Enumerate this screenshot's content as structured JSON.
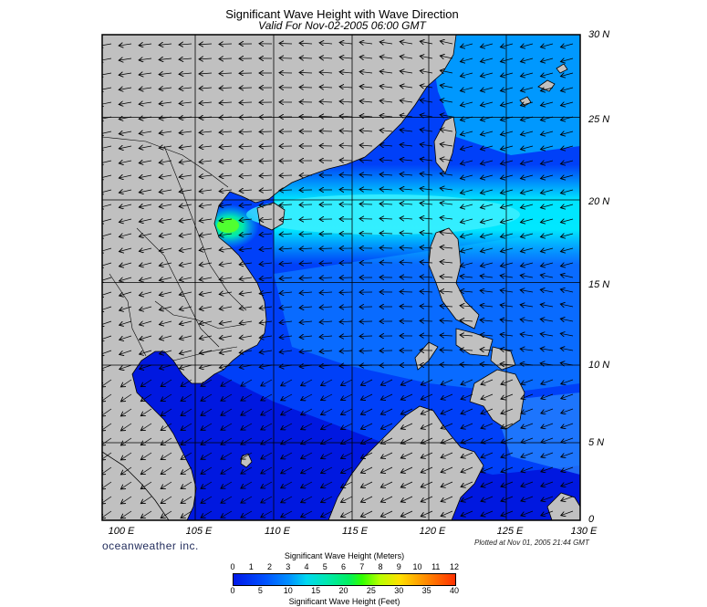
{
  "header": {
    "title": "Significant Wave Height with Wave Direction",
    "subtitle": "Valid For Nov-02-2005 06:00 GMT"
  },
  "map": {
    "lat_labels": [
      "30 N",
      "25 N",
      "20 N",
      "15 N",
      "10 N",
      "5 N",
      "0"
    ],
    "lon_labels": [
      "100 E",
      "105 E",
      "110 E",
      "115 E",
      "120 E",
      "125 E",
      "130 E"
    ],
    "colors": {
      "land": "#c0c0c0",
      "coast": "#000000",
      "grid": "#000000",
      "wave_low": "#0016e0",
      "wave_mid": "#0a5cff",
      "wave_high": "#00d8ff",
      "wave_peak": "#30ff40"
    }
  },
  "footer": {
    "brand": "oceanweather inc.",
    "plotted": "Plotted at Nov 01, 2005 21:44 GMT"
  },
  "colorbar": {
    "meters_label": "Significant Wave Height (Meters)",
    "feet_label": "Significant Wave Height (Feet)",
    "meter_ticks": [
      "0",
      "1",
      "2",
      "3",
      "4",
      "5",
      "6",
      "7",
      "8",
      "9",
      "10",
      "11",
      "12"
    ],
    "feet_ticks": [
      "0",
      "5",
      "10",
      "15",
      "20",
      "25",
      "30",
      "35",
      "40"
    ]
  }
}
